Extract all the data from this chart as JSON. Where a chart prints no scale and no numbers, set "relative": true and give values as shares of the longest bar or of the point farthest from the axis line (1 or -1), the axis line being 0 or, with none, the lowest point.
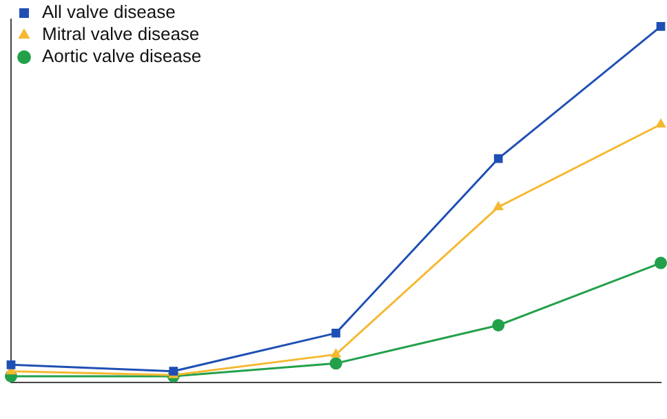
{
  "chart_data": {
    "type": "line",
    "relative": true,
    "categories": [
      null,
      null,
      null,
      null,
      null
    ],
    "series": [
      {
        "name": "All valve disease",
        "color": "#1f4fb4",
        "marker": "square",
        "values": [
          0.05,
          0.032,
          0.139,
          0.629,
          1
        ]
      },
      {
        "name": "Mitral valve disease",
        "color": "#f5b830",
        "marker": "triangle",
        "values": [
          0.032,
          0.021,
          0.079,
          0.493,
          0.725
        ]
      },
      {
        "name": "Aortic valve disease",
        "color": "#22a04a",
        "marker": "circle",
        "values": [
          0.018,
          0.018,
          0.054,
          0.161,
          0.336
        ]
      }
    ],
    "legend": "top left",
    "grid": false,
    "line_style": "solid"
  }
}
